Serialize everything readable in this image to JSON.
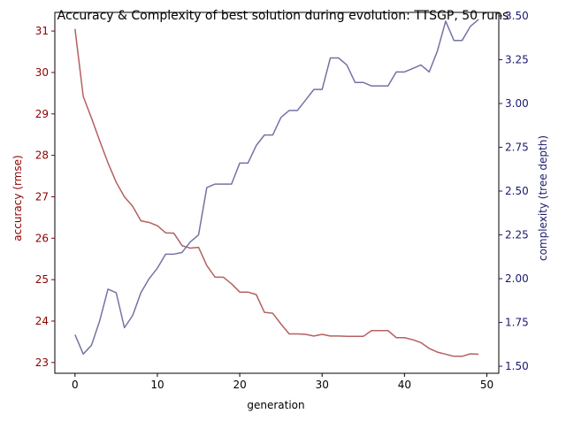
{
  "chart_data": {
    "type": "line",
    "title": "Accuracy & Complexity of best solution during evolution: TTSGP, 50 runs",
    "xlabel": "generation",
    "x": [
      0,
      1,
      2,
      3,
      4,
      5,
      6,
      7,
      8,
      9,
      10,
      11,
      12,
      13,
      14,
      15,
      16,
      17,
      18,
      19,
      20,
      21,
      22,
      23,
      24,
      25,
      26,
      27,
      28,
      29,
      30,
      31,
      32,
      33,
      34,
      35,
      36,
      37,
      38,
      39,
      40,
      41,
      42,
      43,
      44,
      45,
      46,
      47,
      48,
      49
    ],
    "xlim": [
      -2.45,
      51.45
    ],
    "xticks": [
      0,
      10,
      20,
      30,
      40,
      50
    ],
    "grid": false,
    "legend": "none",
    "y_left": {
      "label": "accuracy (rmse)",
      "color": "#8b0000",
      "lim": [
        22.74,
        31.45
      ],
      "ticks": [
        23,
        24,
        25,
        26,
        27,
        28,
        29,
        30,
        31
      ]
    },
    "y_right": {
      "label": "complexity (tree depth)",
      "color": "#191970",
      "lim": [
        1.46,
        3.52
      ],
      "ticks": [
        1.5,
        1.75,
        2.0,
        2.25,
        2.5,
        2.75,
        3.0,
        3.25,
        3.5
      ],
      "tick_labels": [
        "1.50",
        "1.75",
        "2.00",
        "2.25",
        "2.50",
        "2.75",
        "3.00",
        "3.25",
        "3.50"
      ]
    },
    "series": [
      {
        "axis": "left",
        "color": "#b5605f",
        "values": [
          31.05,
          29.42,
          28.9,
          28.35,
          27.82,
          27.35,
          27.0,
          26.77,
          26.42,
          26.38,
          26.3,
          26.13,
          26.12,
          25.82,
          25.76,
          25.78,
          25.34,
          25.06,
          25.06,
          24.9,
          24.7,
          24.7,
          24.64,
          24.21,
          24.19,
          23.93,
          23.69,
          23.69,
          23.68,
          23.64,
          23.68,
          23.64,
          23.64,
          23.63,
          23.63,
          23.63,
          23.77,
          23.77,
          23.77,
          23.6,
          23.6,
          23.55,
          23.48,
          23.34,
          23.25,
          23.2,
          23.15,
          23.15,
          23.21,
          23.2
        ]
      },
      {
        "axis": "right",
        "color": "#7373a6",
        "values": [
          1.68,
          1.57,
          1.62,
          1.76,
          1.94,
          1.92,
          1.72,
          1.79,
          1.92,
          2.0,
          2.06,
          2.14,
          2.14,
          2.15,
          2.21,
          2.25,
          2.52,
          2.54,
          2.54,
          2.54,
          2.66,
          2.66,
          2.76,
          2.82,
          2.82,
          2.92,
          2.96,
          2.96,
          3.02,
          3.08,
          3.08,
          3.26,
          3.26,
          3.22,
          3.12,
          3.12,
          3.1,
          3.1,
          3.1,
          3.18,
          3.18,
          3.2,
          3.22,
          3.18,
          3.3,
          3.47,
          3.36,
          3.36,
          3.44,
          3.48
        ]
      }
    ]
  }
}
